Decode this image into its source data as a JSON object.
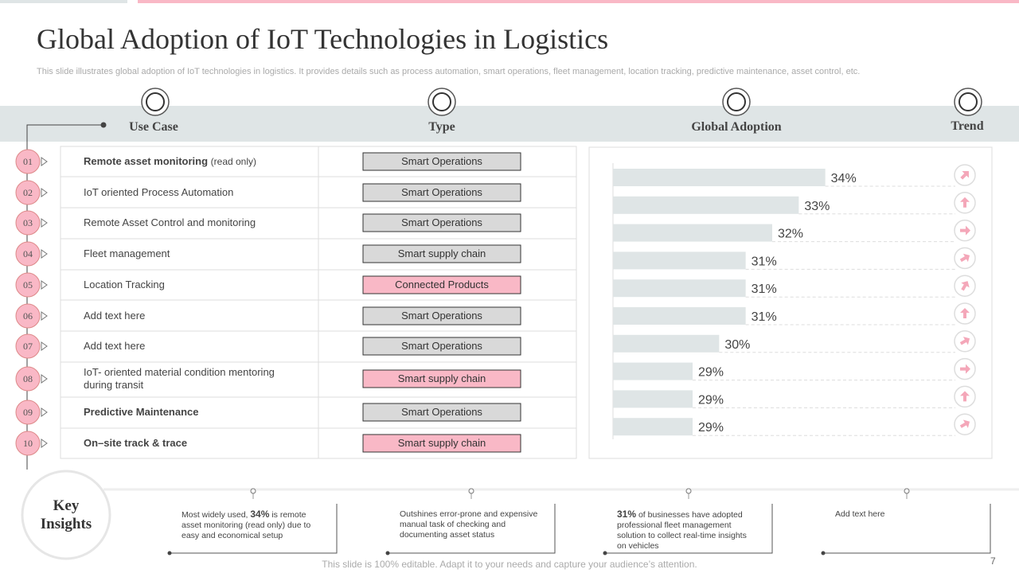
{
  "title": "Global Adoption of IoT Technologies in Logistics",
  "subtitle": "This slide illustrates global adoption of IoT technologies in logistics. It provides details such as process automation, smart operations, fleet management, location tracking, predictive maintenance, asset control, etc.",
  "columns": [
    "Use Case",
    "Type",
    "Global Adoption",
    "Trend"
  ],
  "rows": [
    {
      "number": "01",
      "use_case": "Remote  asset monitoring",
      "note": "(read only)",
      "type": "Smart Operations",
      "bold": true,
      "color": "#d9d9d9"
    },
    {
      "number": "02",
      "use_case": "IoT oriented  Process Automation",
      "type": "Smart Operations",
      "color": "#d9d9d9"
    },
    {
      "number": "03",
      "use_case": "Remote Asset Control and monitoring",
      "type": "Smart Operations",
      "color": "#d9d9d9"
    },
    {
      "number": "04",
      "use_case": "Fleet management",
      "type": "Smart supply chain",
      "color": "#d9d9d9"
    },
    {
      "number": "05",
      "use_case": "Location Tracking",
      "type": "Connected Products",
      "color": "#f9b8c6"
    },
    {
      "number": "06",
      "use_case": "Add text here",
      "type": "Smart Operations",
      "color": "#d9d9d9"
    },
    {
      "number": "07",
      "use_case": "Add text here",
      "type": "Smart Operations",
      "color": "#d9d9d9"
    },
    {
      "number": "08",
      "use_case": "IoT- oriented material  condition mentoring during transit",
      "type": "Smart supply chain",
      "color": "#f9b8c6"
    },
    {
      "number": "09",
      "use_case": "Predictive Maintenance",
      "type": "Smart Operations",
      "bold": true,
      "color": "#d9d9d9"
    },
    {
      "number": "10",
      "use_case": "On–site track & trace",
      "type": "Smart supply chain",
      "bold": true,
      "color": "#f9b8c6"
    }
  ],
  "chart_data": {
    "type": "bar",
    "orientation": "horizontal",
    "values": [
      34,
      33,
      32,
      31,
      31,
      31,
      30,
      29,
      29,
      29
    ],
    "value_labels": [
      "34%",
      "33%",
      "32%",
      "31%",
      "31%",
      "31%",
      "30%",
      "29%",
      "29%",
      "29%"
    ],
    "xlim": [
      26,
      35
    ],
    "color": "#dfe5e6"
  },
  "insights": {
    "title": "Key Insights",
    "items": [
      [
        "Most widely used, ",
        "34%",
        " is remote asset monitoring  (read only) due to easy and economical setup"
      ],
      [
        "Outshines error-prone and expensive manual task of checking and documenting asset status"
      ],
      [
        "",
        "31%",
        "  of businesses have adopted professional fleet management solution to collect real-time insights on vehicles"
      ],
      [
        "Add text here"
      ]
    ]
  },
  "footer": "This slide is 100% editable. Adapt it to your needs and capture your audience’s attention.",
  "page": "7"
}
